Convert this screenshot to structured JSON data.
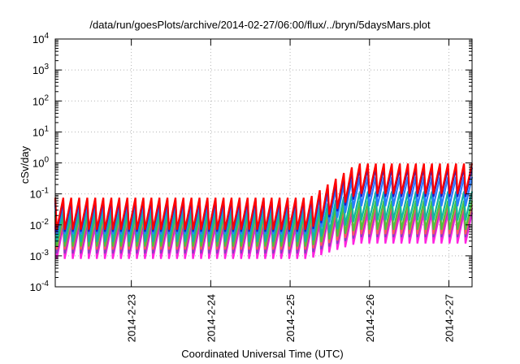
{
  "chart_data": {
    "type": "line",
    "title": "/data/run/goesPlots/archive/2014-02-27/06:00/flux/../bryn/5daysMars.plot",
    "xlabel": "Coordinated Universal Time (UTC)",
    "ylabel": "cSv/day",
    "yscale": "log",
    "ylim": [
      0.0001,
      10000
    ],
    "xlim": [
      "2014-02-22 01:00",
      "2014-02-27 07:00"
    ],
    "grid": true,
    "y_ticks": [
      {
        "base": "10",
        "exp": "-4"
      },
      {
        "base": "10",
        "exp": "-3"
      },
      {
        "base": "10",
        "exp": "-2"
      },
      {
        "base": "10",
        "exp": "-1"
      },
      {
        "base": "10",
        "exp": "0"
      },
      {
        "base": "10",
        "exp": "1"
      },
      {
        "base": "10",
        "exp": "2"
      },
      {
        "base": "10",
        "exp": "3"
      },
      {
        "base": "10",
        "exp": "4"
      }
    ],
    "x_ticks": [
      "2014-2-23",
      "2014-2-24",
      "2014-2-25",
      "2014-2-26",
      "2014-2-27"
    ],
    "sawtooth": {
      "cycles": 52,
      "rise_from_day": 3.2,
      "rise_to_day": 3.8,
      "drop_fraction": 0.18
    },
    "series": [
      {
        "color": "#ff0000",
        "early_peak": 0.075,
        "early_trough": 0.007,
        "late_peak": 0.95,
        "late_trough": 0.1
      },
      {
        "color": "#1e1ec8",
        "early_peak": 0.062,
        "early_trough": 0.006,
        "late_peak": 0.7,
        "late_trough": 0.08
      },
      {
        "color": "#2b7cff",
        "early_peak": 0.05,
        "early_trough": 0.005,
        "late_peak": 0.35,
        "late_trough": 0.04
      },
      {
        "color": "#14b4a0",
        "early_peak": 0.028,
        "early_trough": 0.0028,
        "late_peak": 0.12,
        "late_trough": 0.014
      },
      {
        "color": "#4cc43c",
        "early_peak": 0.02,
        "early_trough": 0.002,
        "late_peak": 0.06,
        "late_trough": 0.007
      },
      {
        "color": "#ff5a5a",
        "early_peak": 0.015,
        "early_trough": 0.0016,
        "late_peak": 0.045,
        "late_trough": 0.005
      },
      {
        "color": "#8b3fbf",
        "early_peak": 0.012,
        "early_trough": 0.0012,
        "late_peak": 0.035,
        "late_trough": 0.004
      },
      {
        "color": "#ff22e0",
        "early_peak": 0.009,
        "early_trough": 0.0008,
        "late_peak": 0.025,
        "late_trough": 0.0025
      }
    ]
  }
}
